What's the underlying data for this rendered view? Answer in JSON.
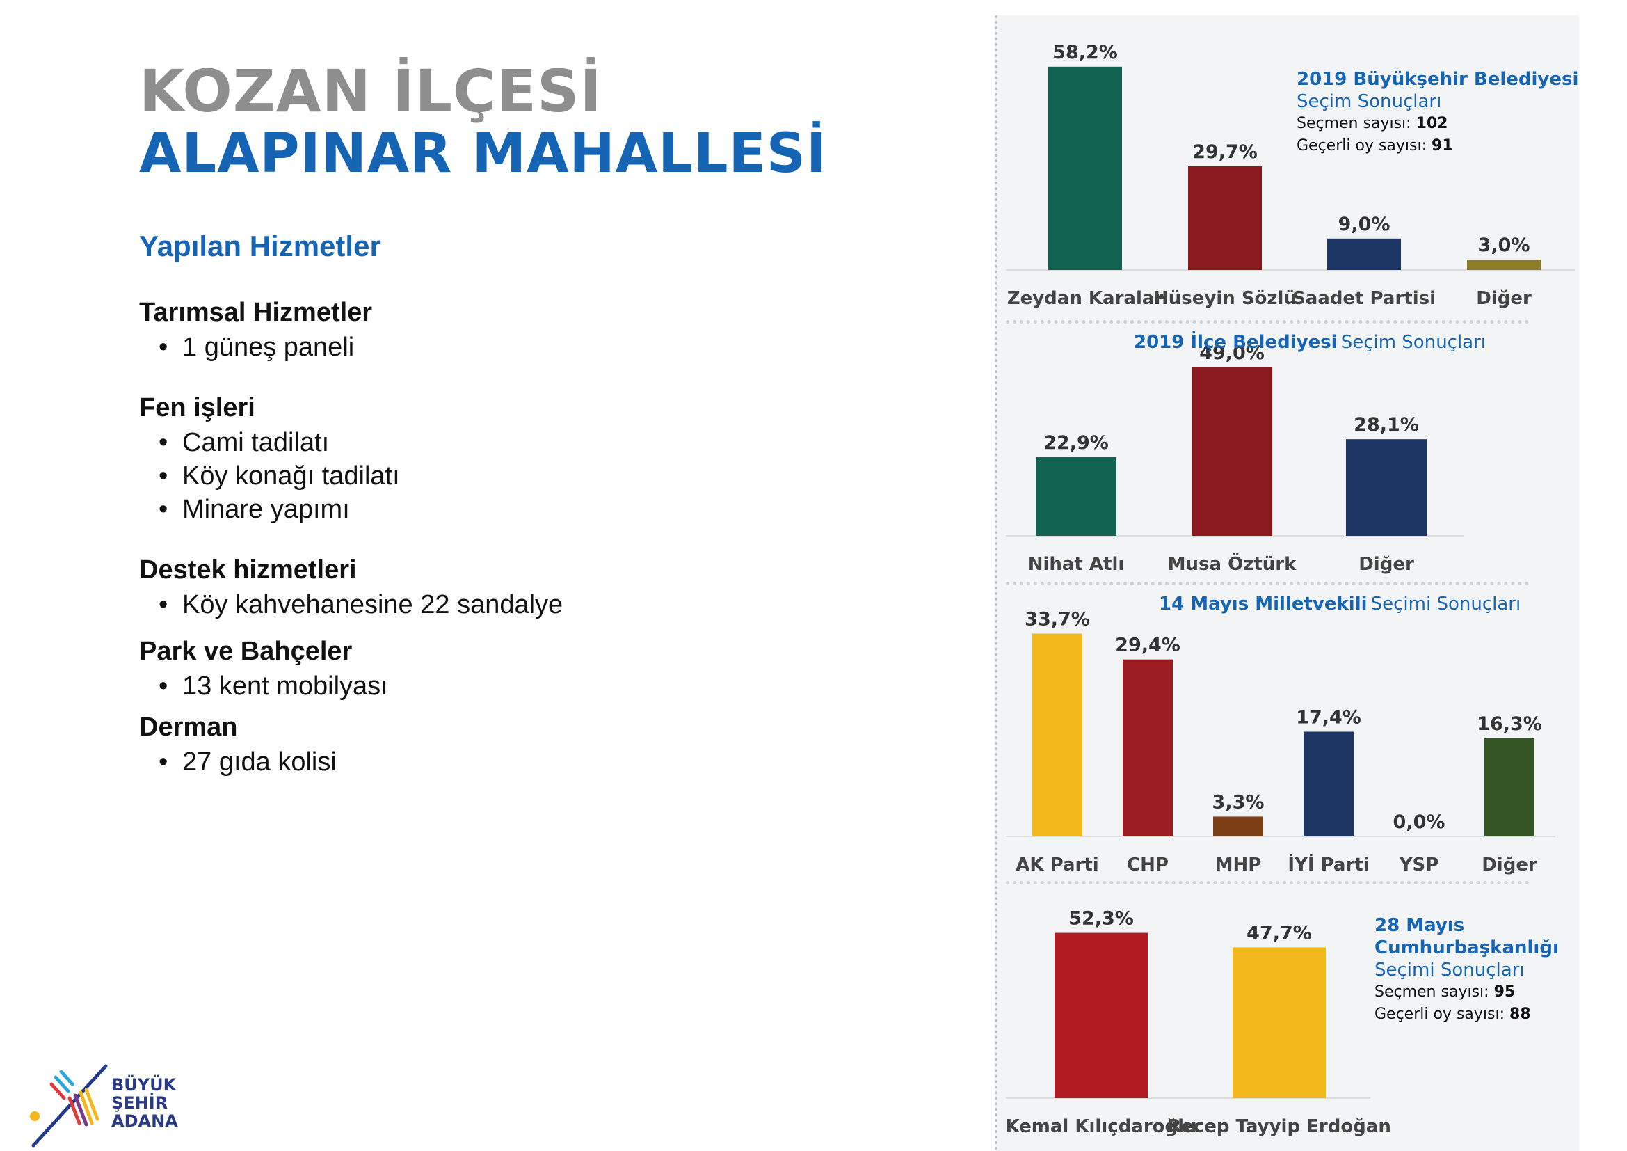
{
  "header": {
    "title_line1": "KOZAN İLÇESİ",
    "title_line2": "ALAPINAR MAHALLESİ"
  },
  "services": {
    "heading": "Yapılan Hizmetler",
    "groups": [
      {
        "title": "Tarımsal Hizmetler",
        "items": [
          "1 güneş paneli"
        ]
      },
      {
        "title": "Fen işleri",
        "items": [
          "Cami tadilatı",
          "Köy konağı tadilatı",
          "Minare yapımı"
        ]
      },
      {
        "title": "Destek hizmetleri",
        "items": [
          "Köy kahvehanesine 22 sandalye"
        ]
      },
      {
        "title": "Park ve Bahçeler",
        "items": [
          "13 kent mobilyası"
        ]
      },
      {
        "title": "Derman",
        "items": [
          "27 gıda kolisi"
        ]
      }
    ]
  },
  "info_buyuksehir": {
    "line1": "2019 Büyükşehir Belediyesi",
    "line2": "Seçim Sonuçları",
    "voters_label": "Seçmen sayısı:",
    "voters_value": "102",
    "valid_label": "Geçerli oy sayısı:",
    "valid_value": "91"
  },
  "info_ilce": {
    "bold": "2019 İlçe Belediyesi",
    "rest": "Seçim Sonuçları"
  },
  "info_milletvekili": {
    "bold": "14 Mayıs Milletvekili",
    "rest": "Seçimi Sonuçları"
  },
  "info_cb": {
    "line1": "28 Mayıs",
    "line2": "Cumhurbaşkanlığı",
    "line3": "Seçimi Sonuçları",
    "voters_label": "Seçmen sayısı:",
    "voters_value": "95",
    "valid_label": "Geçerli oy sayısı:",
    "valid_value": "88"
  },
  "logo": {
    "line1": "BÜYÜK",
    "line2": "ŞEHİR",
    "line3": "ADANA"
  },
  "chart_data": [
    {
      "type": "bar",
      "categories": [
        "Zeydan Karalar",
        "Hüseyin Sözlü",
        "Saadet Partisi",
        "Diğer"
      ],
      "values": [
        58.2,
        29.7,
        9.0,
        3.0
      ],
      "labels": [
        "58,2%",
        "29,7%",
        "9,0%",
        "3,0%"
      ],
      "colors": [
        "#126352",
        "#8b1a1e",
        "#1d3563",
        "#8c7d2b"
      ],
      "title": "2019 Büyükşehir Belediyesi Seçim Sonuçları",
      "ylim": [
        0,
        100
      ]
    },
    {
      "type": "bar",
      "categories": [
        "Nihat Atlı",
        "Musa Öztürk",
        "Diğer"
      ],
      "values": [
        22.9,
        49.0,
        28.1
      ],
      "labels": [
        "22,9%",
        "49,0%",
        "28,1%"
      ],
      "colors": [
        "#126352",
        "#8b1a1e",
        "#1d3563"
      ],
      "title": "2019 İlçe Belediyesi Seçim Sonuçları",
      "ylim": [
        0,
        100
      ]
    },
    {
      "type": "bar",
      "categories": [
        "AK Parti",
        "CHP",
        "MHP",
        "İYİ Parti",
        "YSP",
        "Diğer"
      ],
      "values": [
        33.7,
        29.4,
        3.3,
        17.4,
        0.0,
        16.3
      ],
      "labels": [
        "33,7%",
        "29,4%",
        "3,3%",
        "17,4%",
        "0,0%",
        "16,3%"
      ],
      "colors": [
        "#f2b71b",
        "#9a1b22",
        "#7a3d14",
        "#1d3563",
        "#8a4a9a",
        "#355526"
      ],
      "title": "14 Mayıs Milletvekili Seçimi Sonuçları",
      "ylim": [
        0,
        100
      ]
    },
    {
      "type": "bar",
      "categories": [
        "Kemal Kılıçdaroğlu",
        "Recep Tayyip Erdoğan"
      ],
      "values": [
        52.3,
        47.7
      ],
      "labels": [
        "52,3%",
        "47,7%"
      ],
      "colors": [
        "#b31b22",
        "#f2b71b"
      ],
      "title": "28 Mayıs Cumhurbaşkanlığı Seçimi Sonuçları",
      "ylim": [
        0,
        100
      ]
    }
  ]
}
